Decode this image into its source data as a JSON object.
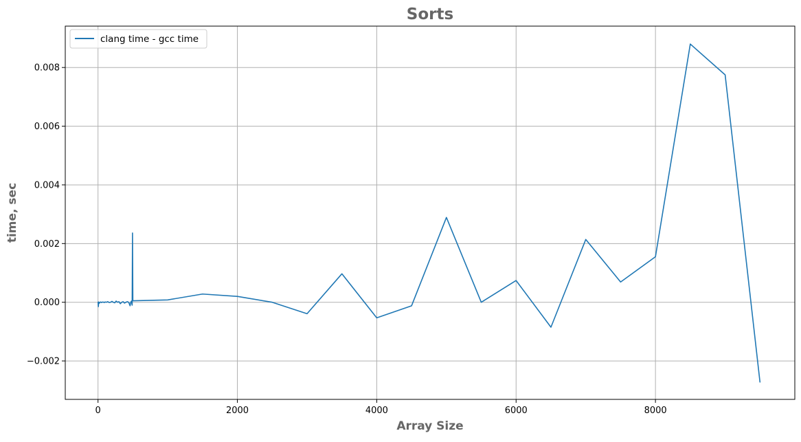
{
  "chart_data": {
    "type": "line",
    "title": "Sorts",
    "xlabel": "Array Size",
    "ylabel": "time, sec",
    "xlim": [
      -470,
      10000
    ],
    "ylim": [
      -0.00331,
      0.00941
    ],
    "xticks": [
      0,
      2000,
      4000,
      6000,
      8000
    ],
    "yticks": [
      -0.002,
      0.0,
      0.002,
      0.004,
      0.006,
      0.008
    ],
    "xtick_labels": [
      "0",
      "2000",
      "4000",
      "6000",
      "8000"
    ],
    "ytick_labels": [
      "−0.002",
      "0.000",
      "0.002",
      "0.004",
      "0.006",
      "0.008"
    ],
    "grid": true,
    "legend_position": "top-left",
    "colors": {
      "series": "#1f77b4",
      "grid": "#b0b0b0",
      "title": "#666666"
    },
    "series": [
      {
        "name": "clang time - gcc time",
        "x": [
          1,
          5,
          10,
          20,
          30,
          40,
          50,
          60,
          70,
          80,
          90,
          100,
          120,
          140,
          160,
          180,
          200,
          220,
          240,
          260,
          280,
          300,
          320,
          340,
          360,
          380,
          400,
          420,
          440,
          460,
          470,
          480,
          490,
          495,
          500,
          1000,
          1500,
          2000,
          2500,
          3000,
          3500,
          4000,
          4500,
          5000,
          5500,
          6000,
          6500,
          7000,
          7500,
          8000,
          8500,
          9000,
          9500
        ],
        "y": [
          0.0,
          -0.00015,
          1e-05,
          -3e-05,
          0.0,
          1e-05,
          -1e-05,
          0.0,
          1e-05,
          0.0,
          -1e-05,
          1e-05,
          0.0,
          2e-05,
          -1e-05,
          0.0,
          3e-05,
          0.0,
          -2e-05,
          4e-05,
          0.0,
          2e-05,
          -5e-05,
          0.0,
          2e-05,
          -3e-05,
          0.0,
          2e-05,
          0.0,
          -0.00012,
          0.0,
          4e-05,
          -0.0001,
          0.00236,
          5e-05,
          8e-05,
          0.00028,
          0.0002,
          0.0,
          -0.00039,
          0.00097,
          -0.00053,
          -0.00012,
          0.00289,
          0.0,
          0.00074,
          -0.00085,
          0.00214,
          0.00069,
          0.00155,
          0.0088,
          0.00775,
          -0.00272
        ]
      }
    ]
  }
}
